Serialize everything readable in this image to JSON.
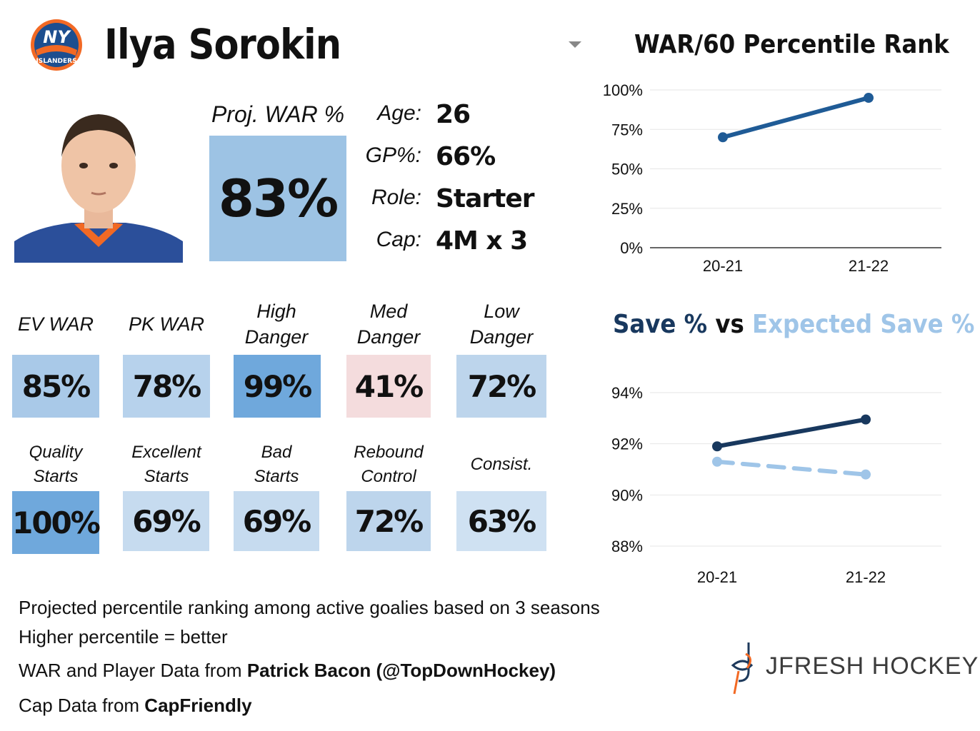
{
  "header": {
    "player_name": "Ilya Sorokin",
    "team_logo_icon": "islanders-logo-icon",
    "team_logo_text": "NY",
    "team_logo_subtext": "ISLANDERS"
  },
  "projection": {
    "label": "Proj. WAR %",
    "value": "83%",
    "color": "#9dc3e4"
  },
  "info": [
    {
      "label": "Age:",
      "value": "26"
    },
    {
      "label": "GP%:",
      "value": "66%"
    },
    {
      "label": "Role:",
      "value": "Starter"
    },
    {
      "label": "Cap:",
      "value": "4M x 3"
    }
  ],
  "metrics_row1": [
    {
      "label_line1": "EV WAR",
      "label_line2": "",
      "value": "85%",
      "percentile": 85,
      "color": "#a9c9e8"
    },
    {
      "label_line1": "PK WAR",
      "label_line2": "",
      "value": "78%",
      "percentile": 78,
      "color": "#b7d2ec"
    },
    {
      "label_line1": "High",
      "label_line2": "Danger",
      "value": "99%",
      "percentile": 99,
      "color": "#6fa8dc"
    },
    {
      "label_line1": "Med",
      "label_line2": "Danger",
      "value": "41%",
      "percentile": 41,
      "color": "#f4dcdd"
    },
    {
      "label_line1": "Low",
      "label_line2": "Danger",
      "value": "72%",
      "percentile": 72,
      "color": "#bdd5ec"
    }
  ],
  "metrics_row2": [
    {
      "label_line1": "Quality",
      "label_line2": "Starts",
      "value": "100%",
      "percentile": 100,
      "color": "#6fa8dc"
    },
    {
      "label_line1": "Excellent",
      "label_line2": "Starts",
      "value": "69%",
      "percentile": 69,
      "color": "#c6dbef"
    },
    {
      "label_line1": "Bad",
      "label_line2": "Starts",
      "value": "69%",
      "percentile": 69,
      "color": "#c6dbef"
    },
    {
      "label_line1": "Rebound",
      "label_line2": "Control",
      "value": "72%",
      "percentile": 72,
      "color": "#bdd5ec"
    },
    {
      "label_line1": "Consist.",
      "label_line2": "",
      "value": "63%",
      "percentile": 63,
      "color": "#cfe1f2"
    }
  ],
  "footer": {
    "line1": "Projected percentile ranking among active goalies based on 3 seasons",
    "line2": "Higher percentile = better",
    "line3_prefix": "WAR and Player Data from ",
    "line3_bold": "Patrick Bacon (@TopDownHockey)",
    "line4_prefix": "Cap Data from ",
    "line4_bold": "CapFriendly"
  },
  "brand": {
    "name": "JFRESH HOCKEY",
    "icon": "jfresh-logo-icon"
  },
  "chart_data": [
    {
      "type": "line",
      "title": "WAR/60 Percentile Rank",
      "categories": [
        "20-21",
        "21-22"
      ],
      "series": [
        {
          "values": [
            70,
            95
          ],
          "color": "#1f5b96"
        }
      ],
      "yticks": [
        "0%",
        "25%",
        "50%",
        "75%",
        "100%"
      ],
      "ylim": [
        0,
        100
      ],
      "grid": true
    },
    {
      "type": "line",
      "title_part1": "Save % ",
      "title_part2": "vs ",
      "title_part3": "Expected Save %",
      "title_colors": [
        "#18385e",
        "#111111",
        "#9fc5e8"
      ],
      "categories": [
        "20-21",
        "21-22"
      ],
      "series": [
        {
          "name": "Save %",
          "values": [
            91.9,
            92.95
          ],
          "color": "#18385e",
          "dash": false
        },
        {
          "name": "Expected Save %",
          "values": [
            91.3,
            90.8
          ],
          "color": "#9fc5e8",
          "dash": true
        }
      ],
      "yticks": [
        "88%",
        "90%",
        "92%",
        "94%"
      ],
      "ylim": [
        88,
        94
      ],
      "grid": true
    }
  ]
}
